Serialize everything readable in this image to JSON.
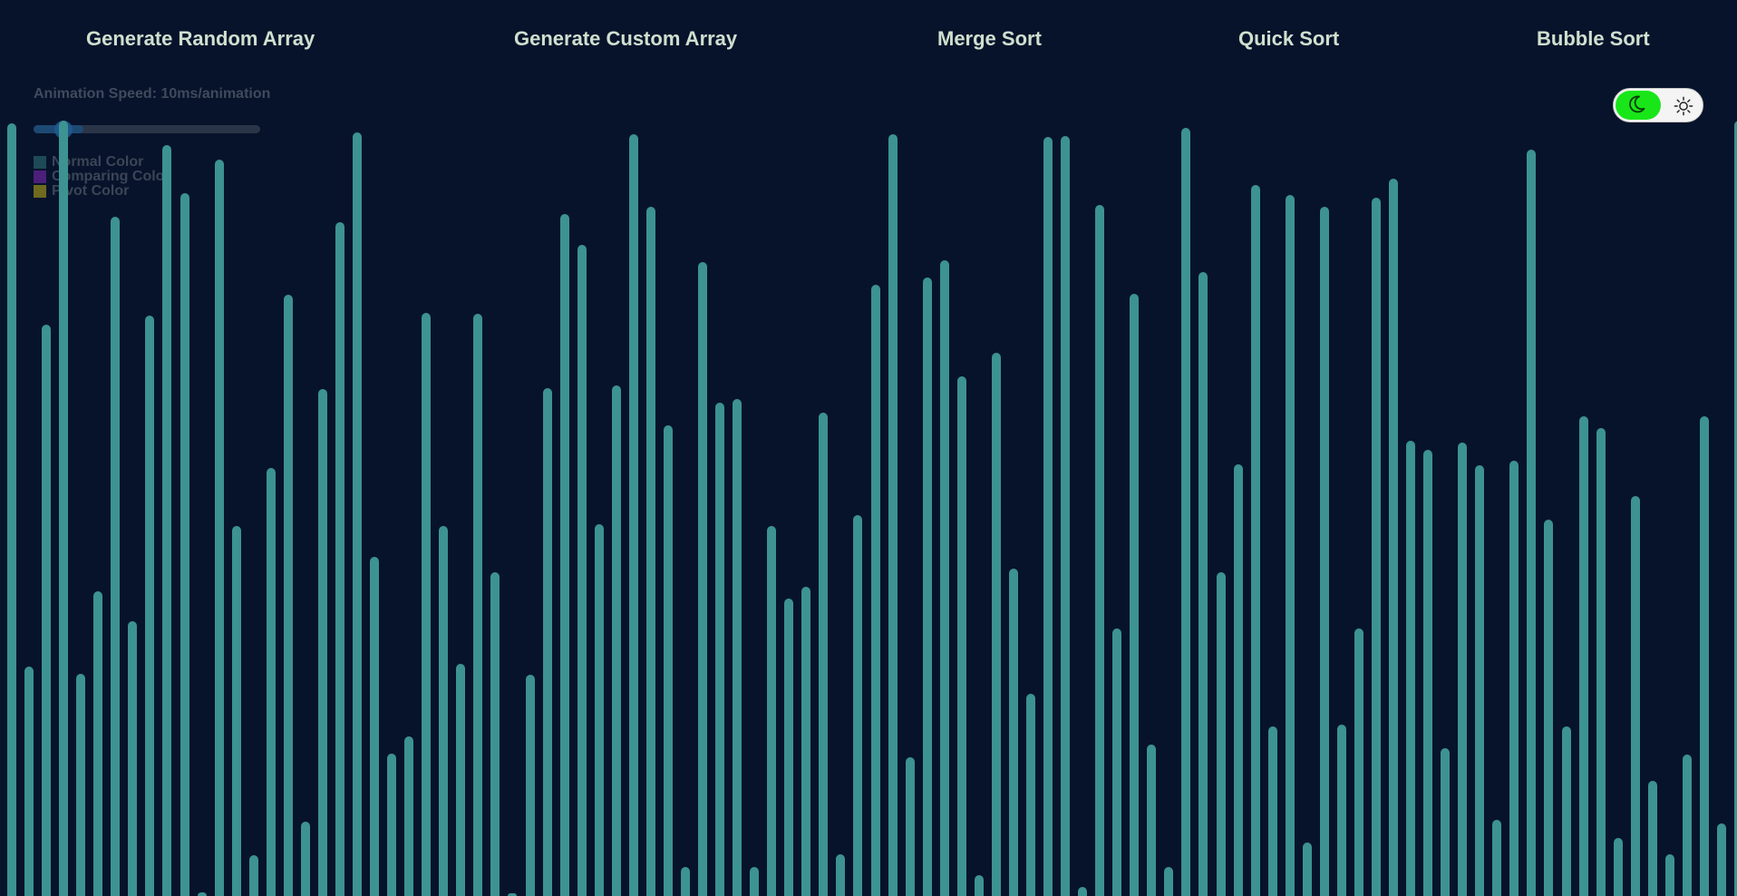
{
  "nav": {
    "items": [
      {
        "label": "Generate Random Array",
        "name": "generate-random-array-button"
      },
      {
        "label": "Generate Custom Array",
        "name": "generate-custom-array-button"
      },
      {
        "label": "Merge Sort",
        "name": "merge-sort-button"
      },
      {
        "label": "Quick Sort",
        "name": "quick-sort-button"
      },
      {
        "label": "Bubble Sort",
        "name": "bubble-sort-button"
      }
    ]
  },
  "speed": {
    "label": "Animation Speed: 10ms/animation",
    "value_fraction": 0.1
  },
  "legend": [
    {
      "label": "Normal Color",
      "color": "#1e4a56"
    },
    {
      "label": "Comparing Color",
      "color": "#4b1f7a"
    },
    {
      "label": "Pivot Color",
      "color": "#6e6a1f"
    }
  ],
  "theme_toggle": {
    "mode": "dark",
    "icons": [
      "moon-icon",
      "sun-icon"
    ],
    "active_color": "#19e619"
  },
  "array": {
    "bar_color": "#3d9391",
    "max_value": 1000,
    "values": [
      997,
      296,
      737,
      1000,
      287,
      393,
      876,
      354,
      748,
      969,
      906,
      5,
      950,
      477,
      53,
      552,
      775,
      96,
      654,
      869,
      985,
      438,
      184,
      206,
      752,
      477,
      299,
      751,
      418,
      3,
      285,
      655,
      880,
      840,
      480,
      658,
      983,
      889,
      607,
      38,
      818,
      636,
      641,
      38,
      477,
      384,
      399,
      623,
      54,
      491,
      788,
      982,
      179,
      798,
      820,
      670,
      27,
      700,
      422,
      261,
      979,
      980,
      12,
      891,
      345,
      777,
      195,
      38,
      991,
      805,
      418,
      557,
      917,
      219,
      904,
      69,
      889,
      221,
      345,
      901,
      925,
      587,
      576,
      191,
      585,
      555,
      98,
      561,
      962,
      485,
      219,
      619,
      603,
      75,
      516,
      148,
      54,
      182,
      619,
      94,
      1000
    ]
  }
}
